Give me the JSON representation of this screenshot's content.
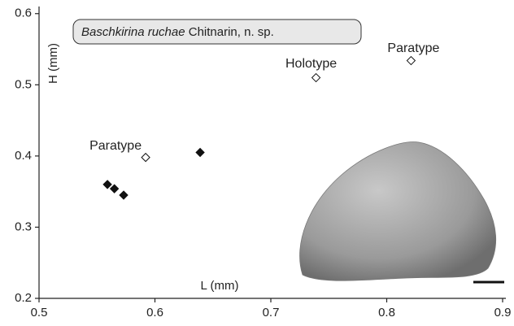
{
  "chart_data": {
    "type": "scatter",
    "title": {
      "italic": "Baschkirina ruchae",
      "plain": "Chitnarin, n. sp."
    },
    "x_label": "L (mm)",
    "y_label": "H (mm)",
    "xlim": [
      0.5,
      0.9
    ],
    "ylim": [
      0.2,
      0.61
    ],
    "xticks": [
      0.5,
      0.6,
      0.7,
      0.8,
      0.9
    ],
    "yticks": [
      0.2,
      0.3,
      0.4,
      0.5,
      0.6
    ],
    "series": [
      {
        "marker": "filled",
        "color": "#111111",
        "x": [
          0.559,
          0.565,
          0.573,
          0.639
        ],
        "values": [
          0.36,
          0.354,
          0.345,
          0.405
        ]
      },
      {
        "marker": "open",
        "color": "#111111",
        "x": [
          0.592,
          0.739,
          0.821
        ],
        "values": [
          0.398,
          0.51,
          0.534
        ],
        "point_labels": [
          "Paratype",
          "Holotype",
          "Paratype"
        ]
      }
    ]
  }
}
